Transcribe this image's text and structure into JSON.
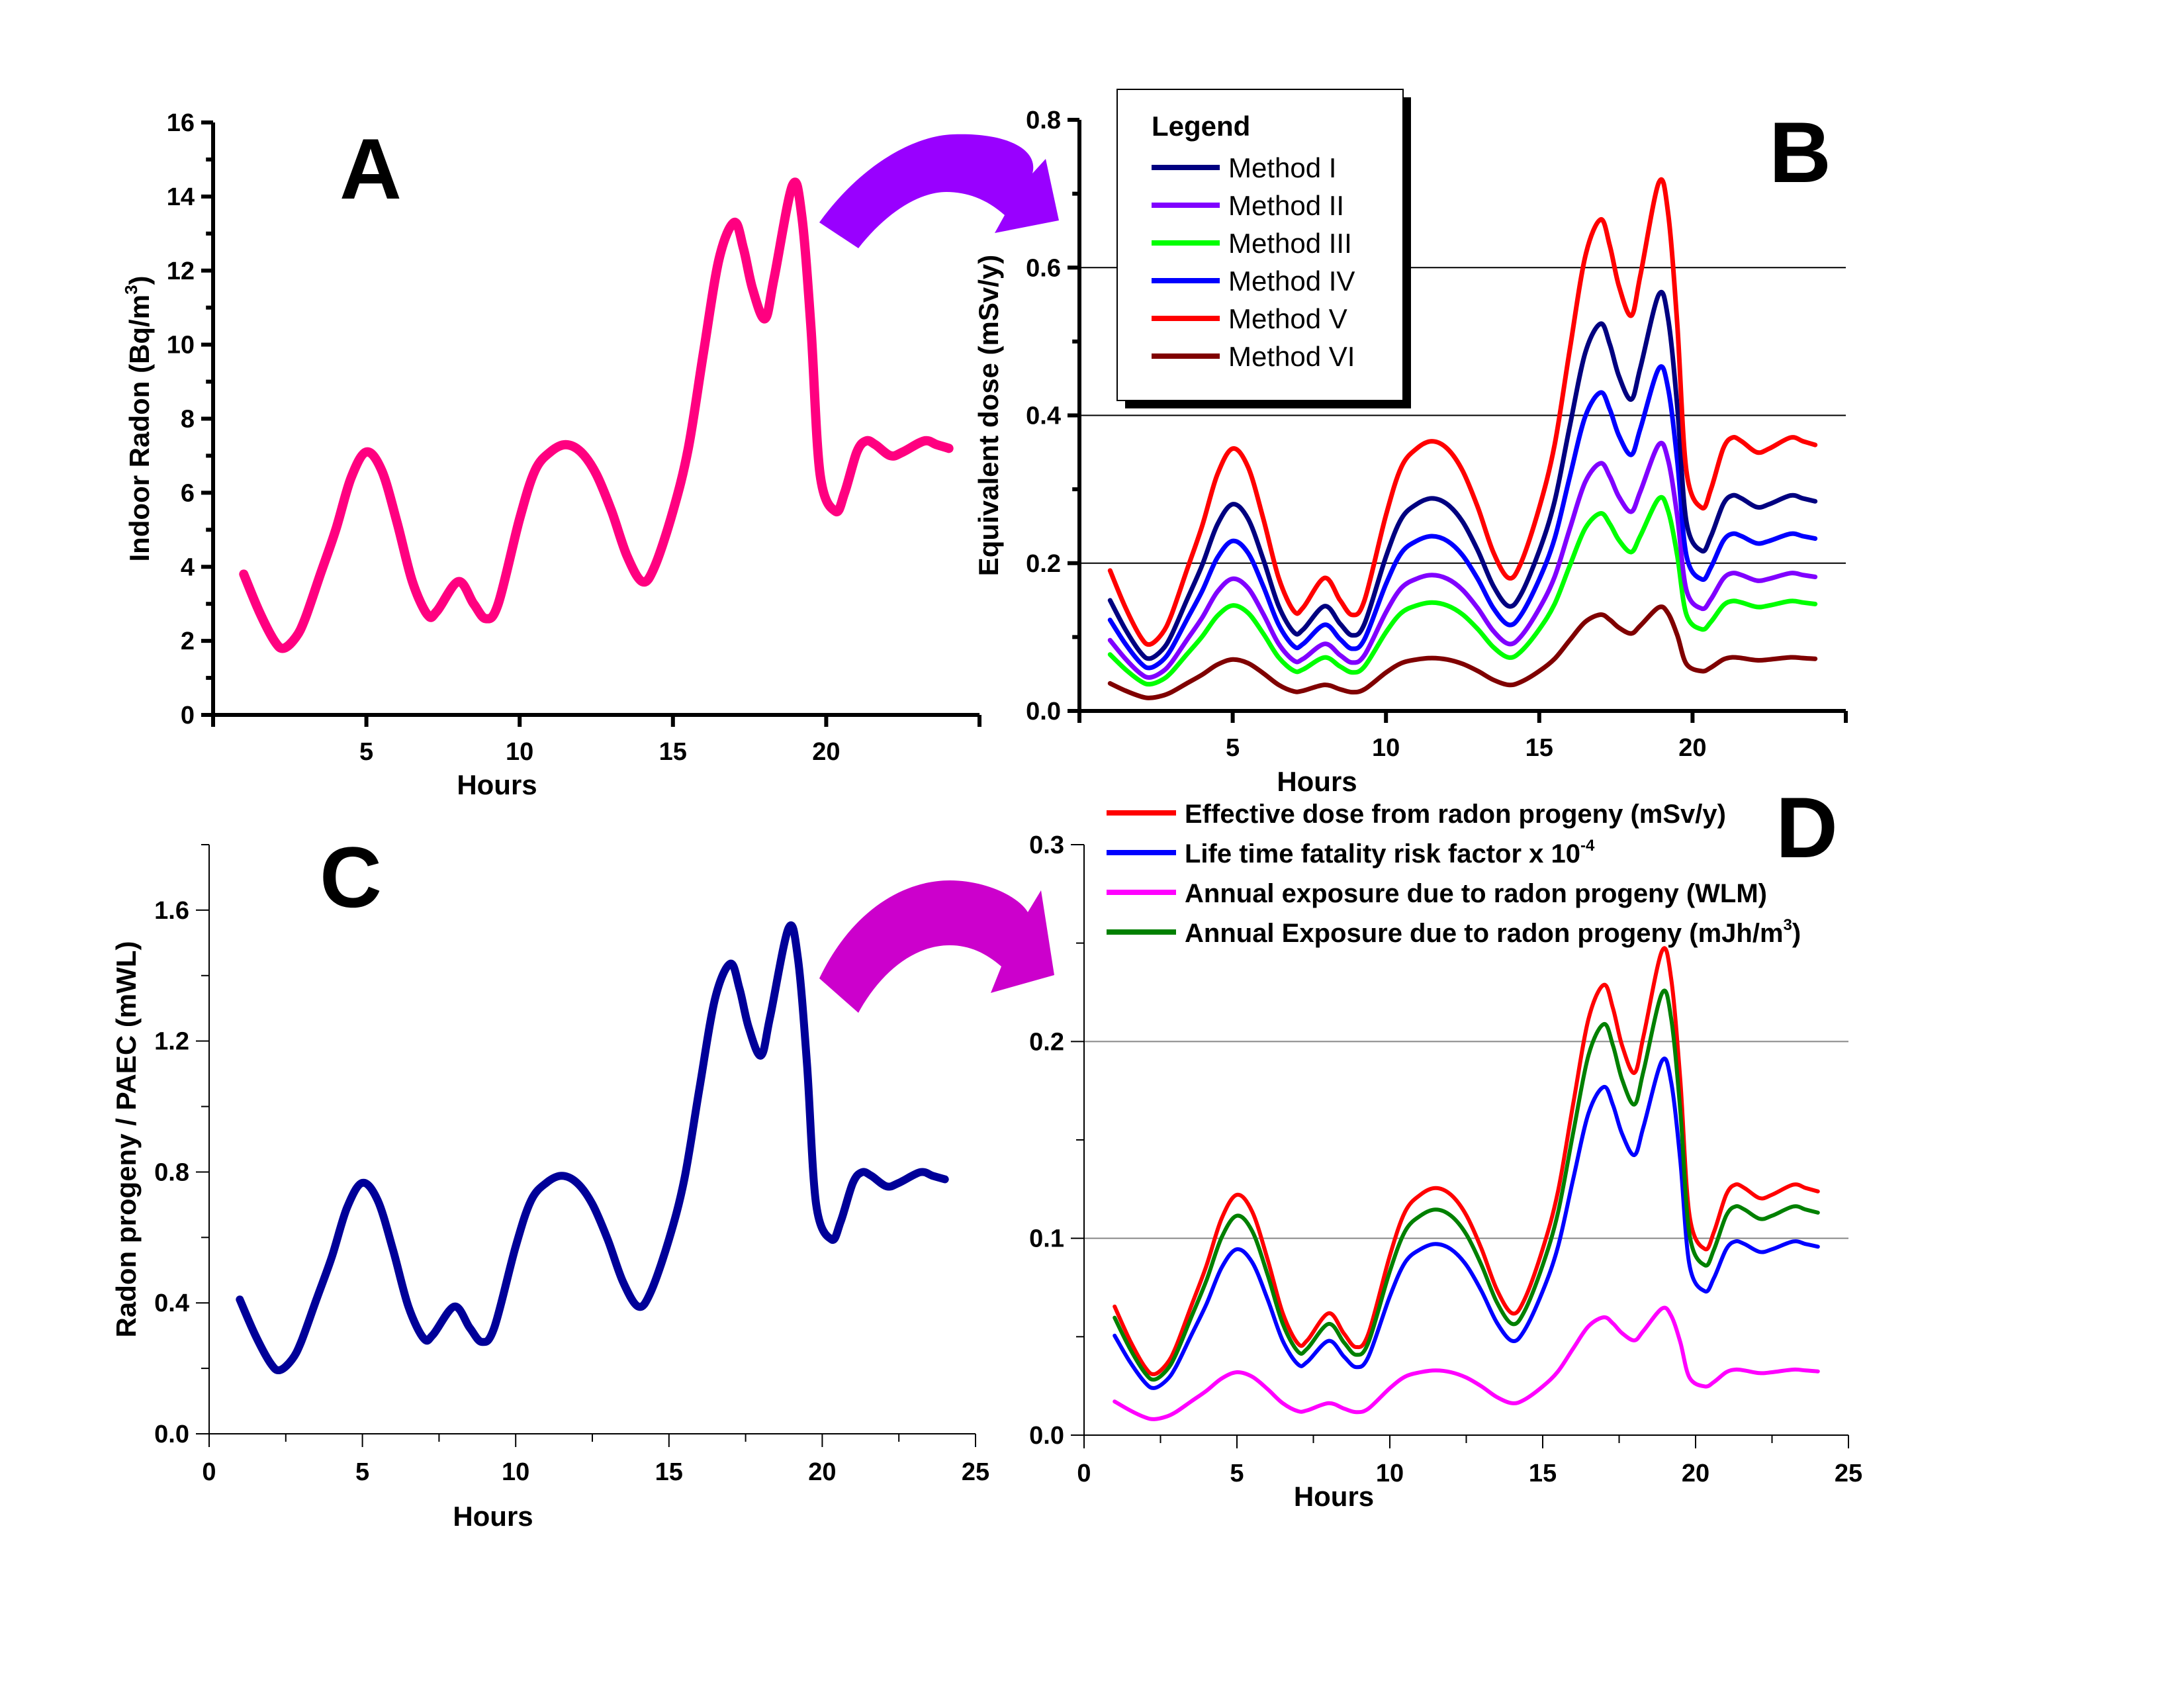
{
  "chart_data": [
    {
      "id": "A",
      "type": "line",
      "panel_label": "A",
      "xlabel": "Hours",
      "ylabel": "Indoor Radon (Bq/m³)",
      "ylabel_main": "Indoor Radon (Bq/m",
      "ylabel_sup": "3",
      "ylabel_tail": ")",
      "xlim": [
        0,
        25
      ],
      "ylim": [
        0,
        16
      ],
      "xticks": [
        5,
        10,
        15,
        20
      ],
      "xtick_labels": [
        "5",
        "10",
        "15",
        "20"
      ],
      "yticks": [
        0,
        2,
        4,
        6,
        8,
        10,
        12,
        14,
        16
      ],
      "ytick_labels": [
        "0",
        "2",
        "4",
        "6",
        "8",
        "10",
        "12",
        "14",
        "16"
      ],
      "grid": false,
      "series": [
        {
          "name": "Indoor Radon",
          "color": "#FF0080",
          "x": [
            1,
            1.5,
            2,
            2.3,
            2.7,
            3,
            3.5,
            4,
            4.5,
            5,
            5.5,
            6,
            6.5,
            7,
            7.3,
            8,
            8.5,
            8.9,
            9.3,
            10,
            10.5,
            11,
            11.5,
            12,
            12.5,
            13,
            13.5,
            14,
            14.4,
            15,
            15.5,
            16,
            16.5,
            17,
            17.3,
            17.6,
            18,
            18.3,
            18.9,
            19.2,
            19.5,
            19.8,
            20.3,
            20.6,
            21,
            21.3,
            21.6,
            22.1,
            22.5,
            23.2,
            23.6,
            24
          ],
          "y": [
            3.8,
            2.8,
            2.0,
            1.8,
            2.1,
            2.6,
            3.8,
            5.0,
            6.4,
            7.1,
            6.6,
            5.2,
            3.6,
            2.7,
            2.8,
            3.6,
            3.0,
            2.6,
            3.0,
            5.3,
            6.6,
            7.1,
            7.3,
            7.1,
            6.5,
            5.5,
            4.3,
            3.6,
            4.0,
            5.5,
            7.2,
            9.8,
            12.3,
            13.3,
            12.6,
            11.5,
            10.7,
            11.8,
            14.3,
            13.5,
            10.5,
            6.5,
            5.5,
            6.0,
            7.1,
            7.4,
            7.3,
            7.0,
            7.1,
            7.4,
            7.3,
            7.2
          ]
        }
      ]
    },
    {
      "id": "B",
      "type": "line",
      "panel_label": "B",
      "xlabel": "Hours",
      "ylabel": "Equivalent dose (mSv/y)",
      "xlim": [
        0,
        25
      ],
      "ylim": [
        0,
        0.8
      ],
      "xticks": [
        5,
        10,
        15,
        20
      ],
      "xtick_labels": [
        "5",
        "10",
        "15",
        "20"
      ],
      "yticks": [
        0,
        0.2,
        0.4,
        0.6,
        0.8
      ],
      "ytick_labels": [
        "0.0",
        "0.2",
        "0.4",
        "0.6",
        "0.8"
      ],
      "grid": true,
      "gridlines": [
        0.2,
        0.4,
        0.6
      ],
      "legend": {
        "title": "Legend",
        "position": "top-left"
      },
      "shared_x": [
        1,
        1.5,
        2,
        2.3,
        2.7,
        3,
        3.5,
        4,
        4.5,
        5,
        5.5,
        6,
        6.5,
        7,
        7.3,
        8,
        8.5,
        8.9,
        9.3,
        10,
        10.5,
        11,
        11.5,
        12,
        12.5,
        13,
        13.5,
        14,
        14.4,
        15,
        15.5,
        16,
        16.5,
        17,
        17.3,
        17.6,
        18,
        18.3,
        18.9,
        19.2,
        19.5,
        19.8,
        20.3,
        20.6,
        21,
        21.3,
        21.6,
        22.1,
        22.5,
        23.2,
        23.6,
        24
      ],
      "series": [
        {
          "name": "Method I",
          "color": "#000080",
          "factor": 0.0394
        },
        {
          "name": "Method II",
          "color": "#8000FF",
          "factor": 0.0252
        },
        {
          "name": "Method III",
          "color": "#00FF00",
          "factor": 0.0201
        },
        {
          "name": "Method IV",
          "color": "#0000FF",
          "factor": 0.0324
        },
        {
          "name": "Method V",
          "color": "#FF0000",
          "factor": 0.05
        },
        {
          "name": "Method VI",
          "color": "#800000",
          "factor": 0.0098
        }
      ],
      "series_note": "y = factor × panel A indoor radon at each x",
      "peak_values_at_hour_19": {
        "Method I": 0.563,
        "Method II": 0.36,
        "Method III": 0.288,
        "Method IV": 0.463,
        "Method V": 0.715,
        "Method VI": 0.14
      }
    },
    {
      "id": "C",
      "type": "line",
      "panel_label": "C",
      "xlabel": "Hours",
      "ylabel": "Radon progeny / PAEC (mWL)",
      "xlim": [
        0,
        25
      ],
      "ylim": [
        0,
        1.8
      ],
      "xticks": [
        0,
        5,
        10,
        15,
        20,
        25
      ],
      "xtick_labels": [
        "0",
        "5",
        "10",
        "15",
        "20",
        "25"
      ],
      "yticks": [
        0,
        0.4,
        0.8,
        1.2,
        1.6
      ],
      "ytick_labels": [
        "0.0",
        "0.4",
        "0.8",
        "1.2",
        "1.6"
      ],
      "grid": false,
      "series": [
        {
          "name": "Radon progeny / PAEC",
          "color": "#000099",
          "factor": 0.108
        }
      ],
      "series_note": "y = factor × panel A indoor radon at each x"
    },
    {
      "id": "D",
      "type": "line",
      "panel_label": "D",
      "xlabel": "Hours",
      "ylabel": "",
      "xlim": [
        0,
        25
      ],
      "ylim": [
        0,
        0.3
      ],
      "xticks": [
        0,
        5,
        10,
        15,
        20,
        25
      ],
      "xtick_labels": [
        "0",
        "5",
        "10",
        "15",
        "20",
        "25"
      ],
      "yticks": [
        0,
        0.1,
        0.2,
        0.3
      ],
      "ytick_labels": [
        "0.0",
        "0.1",
        "0.2",
        "0.3"
      ],
      "grid": true,
      "gridlines": [
        0.1,
        0.2
      ],
      "legend": {
        "position": "top"
      },
      "series": [
        {
          "name": "Effective dose from radon progeny (mSv/y)",
          "label_main": "Effective dose from radon progeny (mSv/y)",
          "label_sup": "",
          "label_tail": "",
          "color": "#FF0000",
          "factor": 0.0172
        },
        {
          "name": "Life time fatality risk factor x 10^-4",
          "label_main": "Life time fatality risk factor x 10",
          "label_sup": "-4",
          "label_tail": "",
          "color": "#0000FF",
          "factor": 0.0133
        },
        {
          "name": "Annual exposure due to radon progeny (WLM)",
          "label_main": "Annual exposure due to radon progeny (WLM)",
          "label_sup": "",
          "label_tail": "",
          "color": "#FF00FF",
          "factor": 0.0045
        },
        {
          "name": "Annual Exposure  due to radon progeny (mJh/m³)",
          "label_main": "Annual Exposure  due to radon progeny (mJh/m",
          "label_sup": "3",
          "label_tail": ")",
          "color": "#008000",
          "factor": 0.0157
        }
      ],
      "series_note": "y = factor × panel A indoor radon at each x"
    }
  ],
  "arrows": [
    {
      "from": "A",
      "to": "B",
      "color": "#9900FF"
    },
    {
      "from": "C",
      "to": "D",
      "color": "#CC00CC"
    }
  ]
}
